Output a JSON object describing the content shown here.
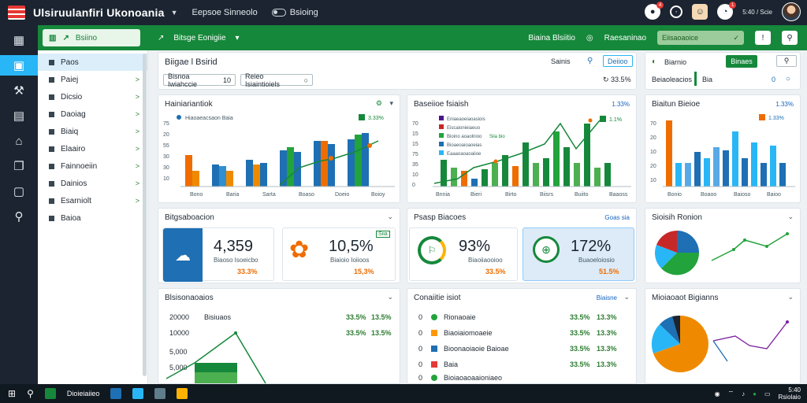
{
  "app": {
    "title": "Ulsiruulanfiri Ukonoania",
    "menu_label": "Eepsoe Sinneolo",
    "toggle_label": "Bsioing"
  },
  "topbar": {
    "notif_count": "4",
    "alert_count": "1",
    "date_label": "5:40 / Scie"
  },
  "greenbar": {
    "tab_label": "Bsiino",
    "title": "Bitsge Eonigiie",
    "right_label": "Biaina Blsiitio",
    "right_label2": "Raesaninao",
    "search_label": "Eiisaoaoice"
  },
  "sidenav": [
    {
      "label": "Paos"
    },
    {
      "label": "Paiej"
    },
    {
      "label": "Dicsio"
    },
    {
      "label": "Daoiag"
    },
    {
      "label": "Biaiq"
    },
    {
      "label": "Elaairo"
    },
    {
      "label": "Fainnoeiin"
    },
    {
      "label": "Dainios"
    },
    {
      "label": "Esarniolt"
    },
    {
      "label": "Baioa"
    }
  ],
  "header_card": {
    "title": "Biigae l Bsirid",
    "chip1": "Bisnoa Iwiahccie",
    "chip1_suffix": "10",
    "chip2": "Reieo Isiaintioiels",
    "right_label": "Sainis",
    "right_btn": "Deiioo",
    "pct": "33.5%"
  },
  "side_card": {
    "title": "Biarnio",
    "btn": "Binaes",
    "sub_label": "Beiaoleacios",
    "sub_tag": "Bia",
    "sub_num": "0"
  },
  "chart1": {
    "title": "Hainiariantiok",
    "legend": "Hiaoaeacsaon Baia",
    "tag": "3.33%",
    "ylabels": [
      "75",
      "20",
      "55",
      "30",
      "30",
      "10"
    ],
    "xlabels": [
      "Bono",
      "Baria",
      "Sarta",
      "Boaso",
      "Doeio",
      "Boioy"
    ]
  },
  "chart2": {
    "title": "Baseiioe fsiaish",
    "tag": "1.33%",
    "legend": [
      "Eniaeaoeiaoasiois",
      "Eiscaionieiaeuo",
      "Bioino aoaolnioo",
      "Bioaeoaioaoeias",
      "Eaaaoaoaoaiioe"
    ],
    "legend_tag": "Siia bio",
    "ylabels": [
      "70",
      "15",
      "15",
      "75",
      "35",
      "10",
      "0"
    ],
    "xlabels": [
      "Bnnia",
      "Bieri",
      "Birto",
      "Biisrs",
      "Buiito",
      "Baaoss"
    ],
    "pct": "1.1%"
  },
  "chart3": {
    "title": "Biaitun Bieioe",
    "tag": "1.33%",
    "ylabels": [
      "70",
      "20",
      "10",
      "20",
      "10"
    ],
    "xlabels": [
      "Bonio",
      "Boaoo",
      "Baioso",
      "Baioo"
    ]
  },
  "kpi_card_1": {
    "title": "Bitgsaboacion",
    "k1_val": "4,359",
    "k1_lbl": "Biaoso Isoeicbo",
    "k1_sub": "33.3%",
    "k2_val": "10,5%",
    "k2_lbl": "Biaioio Ioiioos",
    "k2_sub": "15,3%",
    "k2_tag": "Siia"
  },
  "kpi_card_2": {
    "title": "Psasp Biacoes",
    "tag": "Goas sia",
    "k1_val": "93%",
    "k1_lbl": "Biaoiiaooioo",
    "k1_sub": "33.5%",
    "k2_val": "172%",
    "k2_lbl": "Buaoeloiosio",
    "k2_sub": "51.5%"
  },
  "pie_card_1": {
    "title": "Sioisih Ronion"
  },
  "table_card_1": {
    "title": "Blsisonaoaios",
    "rows": [
      {
        "a": "20000",
        "b": "Bisiuaos",
        "c": "33.5%",
        "d": "13.5%"
      },
      {
        "a": "10000",
        "b": "",
        "c": "33.5%",
        "d": "13.5%"
      },
      {
        "a": "5,000",
        "b": "",
        "c": "",
        "d": ""
      },
      {
        "a": "5,000",
        "b": "",
        "c": "",
        "d": ""
      }
    ]
  },
  "table_card_2": {
    "title": "Conaiitie isiot",
    "tag": "Biaisne",
    "rows": [
      {
        "n": "0",
        "name": "Rionaoaie",
        "c": "33.5%",
        "d": "13.3%"
      },
      {
        "n": "0",
        "name": "Biaoiaiomoaeie",
        "c": "33.5%",
        "d": "13.3%"
      },
      {
        "n": "0",
        "name": "Bioonaoiaoie Baioae",
        "c": "33.5%",
        "d": "13.3%"
      },
      {
        "n": "0",
        "name": "Baia",
        "c": "33.5%",
        "d": "13.3%"
      },
      {
        "n": "0",
        "name": "Bioiaoaoaaioniaeo",
        "c": "",
        "d": ""
      }
    ]
  },
  "pie_card_2": {
    "title": "Mioiaoaot Bigianns"
  },
  "taskbar": {
    "app_label": "Dioieiaiieo",
    "time": "5:40",
    "date": "Rsiolaio"
  },
  "colors": {
    "primary_green": "#16883b",
    "accent_blue": "#29b6f6",
    "dark_bg": "#1b2430",
    "orange": "#ef6c00",
    "bar_blue": "#1e6fb3"
  }
}
